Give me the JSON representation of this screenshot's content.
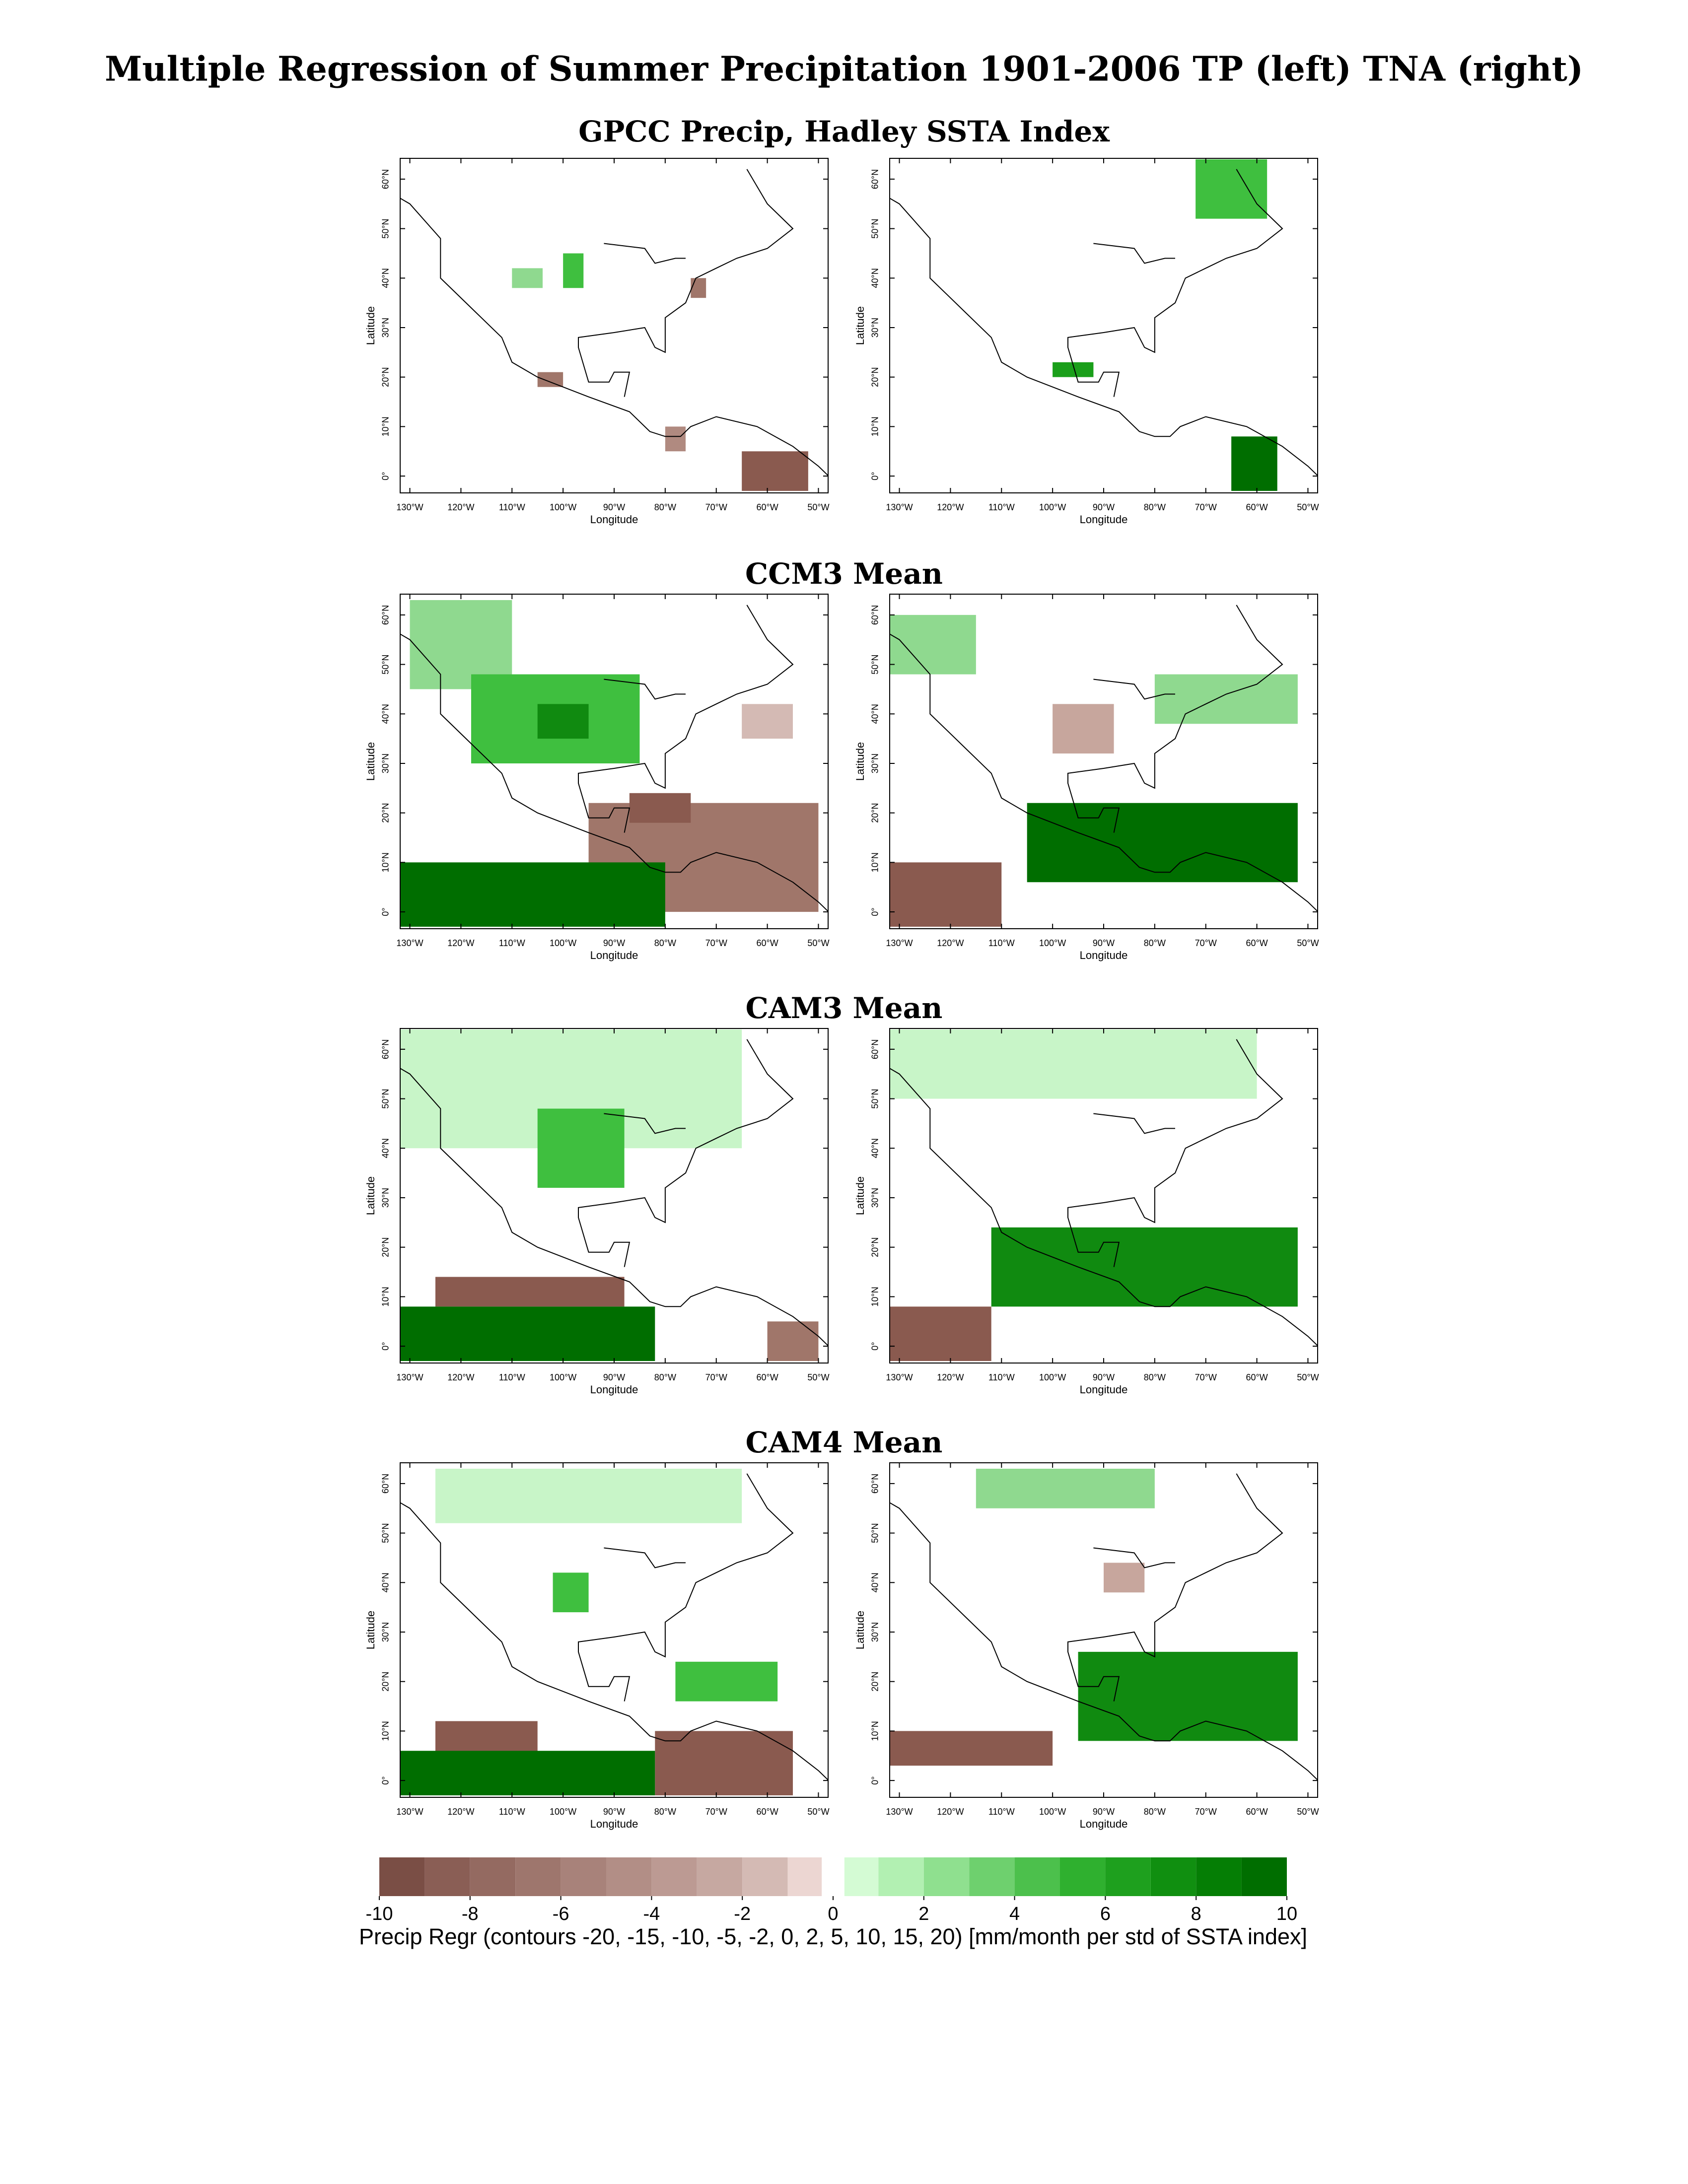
{
  "title": "Multiple Regression of Summer Precipitation 1901-2006 TP (left) TNA (right)",
  "rows": [
    {
      "title": "GPCC Precip, Hadley SSTA Index"
    },
    {
      "title": "CCM3 Mean"
    },
    {
      "title": "CAM3 Mean"
    },
    {
      "title": "CAM4 Mean"
    }
  ],
  "axes": {
    "xlabel": "Longitude",
    "ylabel": "Latitude",
    "xticks": [
      {
        "value": -130,
        "label": "130°W"
      },
      {
        "value": -120,
        "label": "120°W"
      },
      {
        "value": -110,
        "label": "110°W"
      },
      {
        "value": -100,
        "label": "100°W"
      },
      {
        "value": -90,
        "label": "90°W"
      },
      {
        "value": -80,
        "label": "80°W"
      },
      {
        "value": -70,
        "label": "70°W"
      },
      {
        "value": -60,
        "label": "60°W"
      },
      {
        "value": -50,
        "label": "50°W"
      }
    ],
    "yticks": [
      {
        "value": 0,
        "label": "0°"
      },
      {
        "value": 10,
        "label": "10°N"
      },
      {
        "value": 20,
        "label": "20°N"
      },
      {
        "value": 30,
        "label": "30°N"
      },
      {
        "value": 40,
        "label": "40°N"
      },
      {
        "value": 50,
        "label": "50°N"
      },
      {
        "value": 60,
        "label": "60°N"
      }
    ]
  },
  "colorbar": {
    "range": [
      -10,
      10
    ],
    "ticks": [
      -10,
      -8,
      -6,
      -4,
      -2,
      0,
      2,
      4,
      6,
      8,
      10
    ],
    "colors": [
      "#7a4e45",
      "#8a5e55",
      "#946a61",
      "#9e766d",
      "#a8827a",
      "#b28e86",
      "#bc9a93",
      "#c6a8a1",
      "#d4bab4",
      "#ecd6d2",
      "#d4fbd4",
      "#b2f0b2",
      "#8fe08f",
      "#6ed06e",
      "#4cc04c",
      "#2fb02f",
      "#1ea01e",
      "#108f10",
      "#057e05",
      "#006e00"
    ],
    "label": "Precip Regr (contours -20, -15, -10, -5, -2, 0, 2, 5, 10, 15, 20) [mm/month per std of SSTA index]"
  }
}
